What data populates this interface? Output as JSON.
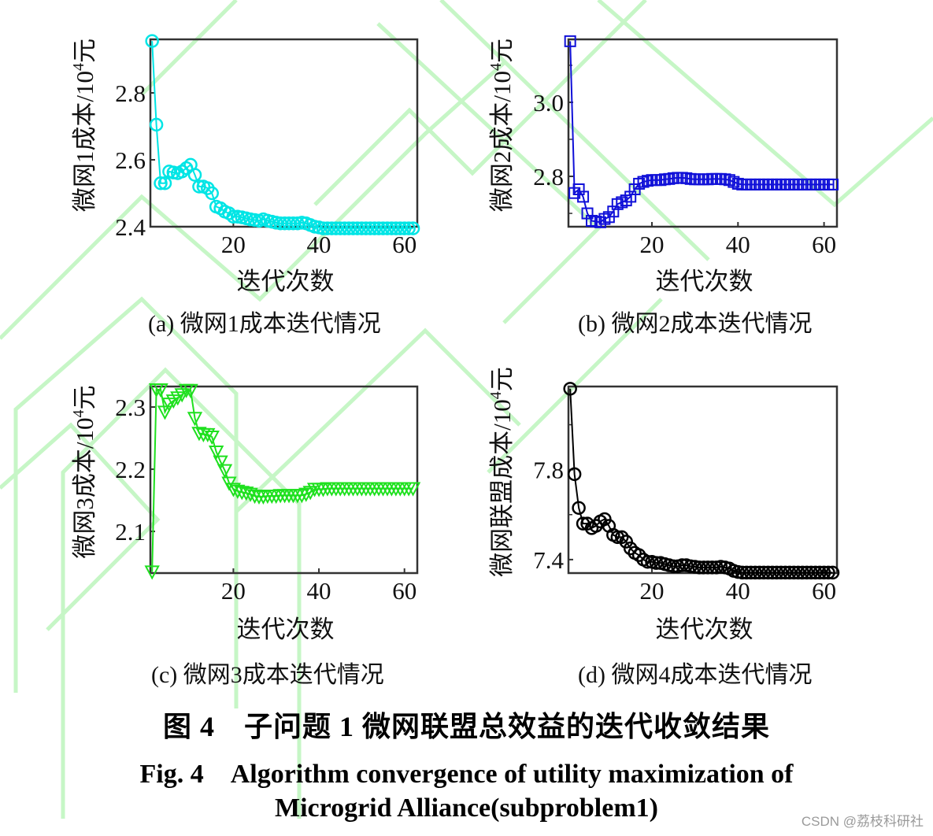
{
  "figure": {
    "caption_cn": "图 4　子问题 1 微网联盟总效益的迭代收敛结果",
    "caption_en_line1": "Fig. 4　Algorithm convergence of utility maximization of",
    "caption_en_line2": "Microgrid Alliance(subproblem1)",
    "watermark": "CSDN @荔枝科研社"
  },
  "chart_data": [
    {
      "id": "a",
      "type": "line",
      "subcaption": "(a) 微网1成本迭代情况",
      "xlabel": "迭代次数",
      "ylabel": "微网1成本/10⁴元",
      "ylabel_parts": {
        "pre": "微网1成本/10",
        "sup": "4",
        "post": "元"
      },
      "xlim": [
        1,
        64
      ],
      "ylim": [
        2.4,
        2.96
      ],
      "xticks": [
        20,
        40,
        60
      ],
      "yticks": [
        2.4,
        2.6,
        2.8
      ],
      "ytick_labels": [
        "2.4",
        "2.6",
        "2.8"
      ],
      "grid": false,
      "color": "#00e5e5",
      "marker": "circle",
      "series": [
        {
          "name": "微网1成本",
          "x": [
            1,
            2,
            3,
            4,
            5,
            6,
            7,
            8,
            9,
            10,
            11,
            12,
            13,
            14,
            15,
            16,
            17,
            18,
            19,
            20,
            21,
            22,
            23,
            24,
            25,
            26,
            27,
            28,
            29,
            30,
            31,
            32,
            33,
            34,
            35,
            36,
            37,
            38,
            39,
            40,
            41,
            42,
            43,
            44,
            45,
            46,
            47,
            48,
            49,
            50,
            51,
            52,
            53,
            54,
            55,
            56,
            57,
            58,
            59,
            60,
            61,
            62
          ],
          "values": [
            2.955,
            2.705,
            2.53,
            2.53,
            2.565,
            2.562,
            2.56,
            2.565,
            2.575,
            2.585,
            2.555,
            2.52,
            2.52,
            2.515,
            2.5,
            2.46,
            2.455,
            2.445,
            2.44,
            2.43,
            2.43,
            2.428,
            2.425,
            2.422,
            2.42,
            2.418,
            2.422,
            2.418,
            2.415,
            2.412,
            2.41,
            2.41,
            2.41,
            2.41,
            2.41,
            2.412,
            2.41,
            2.405,
            2.4,
            2.398,
            2.395,
            2.395,
            2.395,
            2.395,
            2.395,
            2.395,
            2.395,
            2.395,
            2.395,
            2.395,
            2.395,
            2.395,
            2.395,
            2.395,
            2.395,
            2.395,
            2.395,
            2.395,
            2.395,
            2.395,
            2.395,
            2.395
          ]
        }
      ]
    },
    {
      "id": "b",
      "type": "line",
      "subcaption": "(b) 微网2成本迭代情况",
      "xlabel": "迭代次数",
      "ylabel": "微网2成本/10⁴元",
      "ylabel_parts": {
        "pre": "微网2成本/10",
        "sup": "4",
        "post": "元"
      },
      "xlim": [
        1,
        64
      ],
      "ylim": [
        2.664,
        3.17
      ],
      "xticks": [
        20,
        40,
        60
      ],
      "yticks": [
        2.8,
        3.0
      ],
      "ytick_labels": [
        "2.8",
        "3.0"
      ],
      "minor_yticks": [
        2.7,
        2.9,
        3.1
      ],
      "grid": false,
      "color": "#1010d8",
      "marker": "square",
      "series": [
        {
          "name": "微网2成本",
          "x": [
            1,
            2,
            3,
            4,
            5,
            6,
            7,
            8,
            9,
            10,
            11,
            12,
            13,
            14,
            15,
            16,
            17,
            18,
            19,
            20,
            21,
            22,
            23,
            24,
            25,
            26,
            27,
            28,
            29,
            30,
            31,
            32,
            33,
            34,
            35,
            36,
            37,
            38,
            39,
            40,
            41,
            42,
            43,
            44,
            45,
            46,
            47,
            48,
            49,
            50,
            51,
            52,
            53,
            54,
            55,
            56,
            57,
            58,
            59,
            60,
            61,
            62
          ],
          "values": [
            3.165,
            2.755,
            2.765,
            2.745,
            2.7,
            2.68,
            2.678,
            2.676,
            2.685,
            2.69,
            2.705,
            2.725,
            2.73,
            2.735,
            2.745,
            2.765,
            2.78,
            2.785,
            2.788,
            2.79,
            2.79,
            2.79,
            2.792,
            2.793,
            2.795,
            2.796,
            2.796,
            2.795,
            2.793,
            2.792,
            2.792,
            2.792,
            2.792,
            2.793,
            2.793,
            2.793,
            2.792,
            2.79,
            2.785,
            2.78,
            2.778,
            2.778,
            2.778,
            2.778,
            2.778,
            2.778,
            2.778,
            2.778,
            2.778,
            2.778,
            2.778,
            2.778,
            2.778,
            2.778,
            2.778,
            2.778,
            2.778,
            2.778,
            2.778,
            2.778,
            2.778,
            2.778
          ]
        }
      ]
    },
    {
      "id": "c",
      "type": "line",
      "subcaption": "(c) 微网3成本迭代情况",
      "xlabel": "迭代次数",
      "ylabel": "微网3成本/10⁴元",
      "ylabel_parts": {
        "pre": "微网3成本/10",
        "sup": "4",
        "post": "元"
      },
      "xlim": [
        1,
        64
      ],
      "ylim": [
        2.033,
        2.333
      ],
      "xticks": [
        20,
        40,
        60
      ],
      "yticks": [
        2.1,
        2.2,
        2.3
      ],
      "ytick_labels": [
        "2.1",
        "2.2",
        "2.3"
      ],
      "grid": false,
      "color": "#1ee01e",
      "marker": "triangle-down",
      "series": [
        {
          "name": "微网3成本",
          "x": [
            1,
            2,
            3,
            4,
            5,
            6,
            7,
            8,
            9,
            10,
            11,
            12,
            13,
            14,
            15,
            16,
            17,
            18,
            19,
            20,
            21,
            22,
            23,
            24,
            25,
            26,
            27,
            28,
            29,
            30,
            31,
            32,
            33,
            34,
            35,
            36,
            37,
            38,
            39,
            40,
            41,
            42,
            43,
            44,
            45,
            46,
            47,
            48,
            49,
            50,
            51,
            52,
            53,
            54,
            55,
            56,
            57,
            58,
            59,
            60,
            61,
            62
          ],
          "values": [
            2.035,
            2.328,
            2.328,
            2.292,
            2.305,
            2.31,
            2.315,
            2.32,
            2.327,
            2.327,
            2.282,
            2.258,
            2.256,
            2.256,
            2.252,
            2.228,
            2.212,
            2.198,
            2.178,
            2.168,
            2.165,
            2.163,
            2.162,
            2.16,
            2.157,
            2.156,
            2.156,
            2.157,
            2.157,
            2.157,
            2.158,
            2.158,
            2.158,
            2.158,
            2.158,
            2.158,
            2.16,
            2.163,
            2.168,
            2.168,
            2.168,
            2.169,
            2.169,
            2.169,
            2.169,
            2.169,
            2.169,
            2.169,
            2.169,
            2.169,
            2.169,
            2.169,
            2.169,
            2.169,
            2.169,
            2.169,
            2.169,
            2.169,
            2.169,
            2.169,
            2.169,
            2.169
          ]
        }
      ]
    },
    {
      "id": "d",
      "type": "line",
      "subcaption": "(d) 微网4成本迭代情况",
      "xlabel": "迭代次数",
      "ylabel": "微网联盟成本/10⁴元",
      "ylabel_parts": {
        "pre": "微网联盟成本/10",
        "sup": "4",
        "post": "元"
      },
      "xlim": [
        1,
        64
      ],
      "ylim": [
        7.34,
        8.17
      ],
      "xticks": [
        20,
        40,
        60
      ],
      "yticks": [
        7.4,
        7.8
      ],
      "ytick_labels": [
        "7.4",
        "7.8"
      ],
      "minor_yticks": [
        7.6,
        8.0
      ],
      "grid": false,
      "color": "#000000",
      "marker": "circle",
      "series": [
        {
          "name": "微网联盟成本",
          "x": [
            1,
            2,
            3,
            4,
            5,
            6,
            7,
            8,
            9,
            10,
            11,
            12,
            13,
            14,
            15,
            16,
            17,
            18,
            19,
            20,
            21,
            22,
            23,
            24,
            25,
            26,
            27,
            28,
            29,
            30,
            31,
            32,
            33,
            34,
            35,
            36,
            37,
            38,
            39,
            40,
            41,
            42,
            43,
            44,
            45,
            46,
            47,
            48,
            49,
            50,
            51,
            52,
            53,
            54,
            55,
            56,
            57,
            58,
            59,
            60,
            61,
            62
          ],
          "values": [
            8.16,
            7.78,
            7.63,
            7.56,
            7.56,
            7.54,
            7.55,
            7.57,
            7.58,
            7.55,
            7.51,
            7.5,
            7.5,
            7.48,
            7.45,
            7.43,
            7.42,
            7.4,
            7.39,
            7.39,
            7.385,
            7.385,
            7.38,
            7.375,
            7.37,
            7.37,
            7.375,
            7.375,
            7.37,
            7.368,
            7.365,
            7.365,
            7.365,
            7.365,
            7.365,
            7.368,
            7.365,
            7.36,
            7.35,
            7.345,
            7.342,
            7.342,
            7.342,
            7.342,
            7.342,
            7.342,
            7.342,
            7.342,
            7.342,
            7.342,
            7.342,
            7.342,
            7.342,
            7.342,
            7.342,
            7.342,
            7.342,
            7.342,
            7.342,
            7.342,
            7.342,
            7.342
          ]
        }
      ]
    }
  ]
}
